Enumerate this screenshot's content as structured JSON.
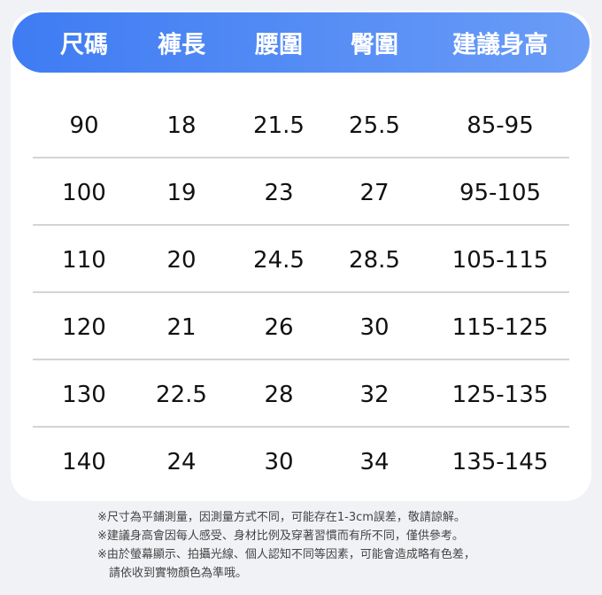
{
  "table": {
    "header": [
      "尺碼",
      "褲長",
      "腰圍",
      "臀圍",
      "建議身高"
    ],
    "rows": [
      [
        "90",
        "18",
        "21.5",
        "25.5",
        "85-95"
      ],
      [
        "100",
        "19",
        "23",
        "27",
        "95-105"
      ],
      [
        "110",
        "20",
        "24.5",
        "28.5",
        "105-115"
      ],
      [
        "120",
        "21",
        "26",
        "30",
        "115-125"
      ],
      [
        "130",
        "22.5",
        "28",
        "32",
        "125-135"
      ],
      [
        "140",
        "24",
        "30",
        "34",
        "135-145"
      ]
    ]
  },
  "notes": [
    "※尺寸為平鋪測量，因測量方式不同，可能存在1-3cm誤差，敬請諒解。",
    "※建議身高會因每人感受、身材比例及穿著習慣而有所不同，僅供參考。",
    "※由於螢幕顯示、拍攝光線、個人認知不同等因素，可能會造成略有色差，",
    "請依收到實物顏色為準哦。"
  ]
}
